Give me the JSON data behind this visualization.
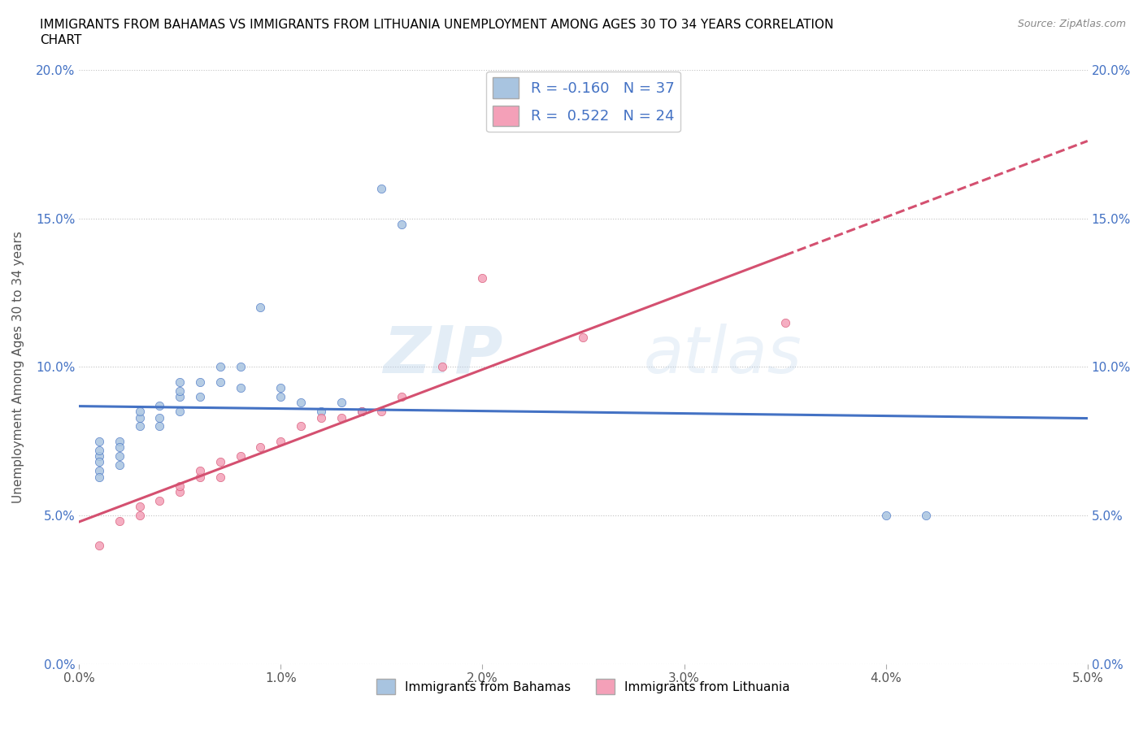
{
  "title_line1": "IMMIGRANTS FROM BAHAMAS VS IMMIGRANTS FROM LITHUANIA UNEMPLOYMENT AMONG AGES 30 TO 34 YEARS CORRELATION",
  "title_line2": "CHART",
  "source_text": "Source: ZipAtlas.com",
  "ylabel": "Unemployment Among Ages 30 to 34 years",
  "xlim": [
    0.0,
    0.05
  ],
  "ylim": [
    0.0,
    0.2
  ],
  "xticks": [
    0.0,
    0.01,
    0.02,
    0.03,
    0.04,
    0.05
  ],
  "yticks": [
    0.0,
    0.05,
    0.1,
    0.15,
    0.2
  ],
  "xticklabels": [
    "0.0%",
    "1.0%",
    "2.0%",
    "3.0%",
    "4.0%",
    "5.0%"
  ],
  "yticklabels": [
    "0.0%",
    "5.0%",
    "10.0%",
    "15.0%",
    "20.0%"
  ],
  "r_bahamas": -0.16,
  "n_bahamas": 37,
  "r_lithuania": 0.522,
  "n_lithuania": 24,
  "color_bahamas": "#a8c4e0",
  "color_lithuania": "#f4a0b8",
  "line_color_bahamas": "#4472c4",
  "line_color_lithuania": "#d45070",
  "watermark": "ZIPatlas",
  "bahamas_x": [
    0.001,
    0.001,
    0.001,
    0.001,
    0.001,
    0.001,
    0.002,
    0.002,
    0.002,
    0.002,
    0.003,
    0.003,
    0.003,
    0.004,
    0.004,
    0.004,
    0.005,
    0.005,
    0.005,
    0.005,
    0.006,
    0.006,
    0.007,
    0.007,
    0.008,
    0.008,
    0.009,
    0.01,
    0.01,
    0.011,
    0.012,
    0.013,
    0.014,
    0.015,
    0.016,
    0.04,
    0.042
  ],
  "bahamas_y": [
    0.07,
    0.072,
    0.075,
    0.068,
    0.065,
    0.063,
    0.075,
    0.073,
    0.07,
    0.067,
    0.08,
    0.083,
    0.085,
    0.08,
    0.083,
    0.087,
    0.085,
    0.09,
    0.092,
    0.095,
    0.09,
    0.095,
    0.1,
    0.095,
    0.1,
    0.093,
    0.12,
    0.09,
    0.093,
    0.088,
    0.085,
    0.088,
    0.085,
    0.16,
    0.148,
    0.05,
    0.05
  ],
  "lithuania_x": [
    0.001,
    0.002,
    0.003,
    0.003,
    0.004,
    0.005,
    0.005,
    0.006,
    0.006,
    0.007,
    0.007,
    0.008,
    0.009,
    0.01,
    0.011,
    0.012,
    0.013,
    0.014,
    0.015,
    0.016,
    0.018,
    0.02,
    0.025,
    0.035
  ],
  "lithuania_y": [
    0.04,
    0.048,
    0.05,
    0.053,
    0.055,
    0.058,
    0.06,
    0.063,
    0.065,
    0.063,
    0.068,
    0.07,
    0.073,
    0.075,
    0.08,
    0.083,
    0.083,
    0.085,
    0.085,
    0.09,
    0.1,
    0.13,
    0.11,
    0.115
  ]
}
